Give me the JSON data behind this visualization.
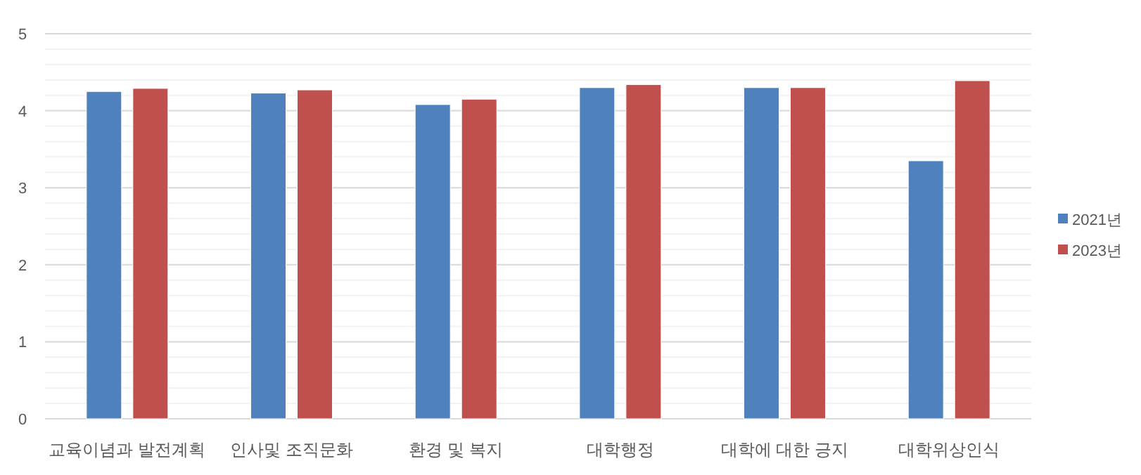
{
  "chart_data": {
    "type": "bar",
    "categories": [
      "교육이념과 발전계획",
      "인사및 조직문화",
      "환경 및 복지",
      "대학행정",
      "대학에 대한 긍지",
      "대학위상인식"
    ],
    "series": [
      {
        "name": "2021년",
        "color": "#4f81bd",
        "values": [
          4.25,
          4.23,
          4.08,
          4.3,
          4.3,
          3.35
        ]
      },
      {
        "name": "2023년",
        "color": "#c0504d",
        "values": [
          4.29,
          4.27,
          4.15,
          4.34,
          4.3,
          4.39
        ]
      }
    ],
    "ylim": [
      0,
      5
    ],
    "yticks": [
      0,
      {
        "value": 0.2,
        "label": null
      },
      {
        "value": 0.4,
        "label": null
      },
      {
        "value": 0.6,
        "label": null
      },
      {
        "value": 0.8,
        "label": null
      },
      1,
      {
        "value": 1.2,
        "label": null
      },
      {
        "value": 1.4,
        "label": null
      },
      {
        "value": 1.6,
        "label": null
      },
      {
        "value": 1.8,
        "label": null
      },
      2,
      {
        "value": 2.2,
        "label": null
      },
      {
        "value": 2.4,
        "label": null
      },
      {
        "value": 2.6,
        "label": null
      },
      {
        "value": 2.8,
        "label": null
      },
      3,
      {
        "value": 3.2,
        "label": null
      },
      {
        "value": 3.4,
        "label": null
      },
      {
        "value": 3.6,
        "label": null
      },
      {
        "value": 3.8,
        "label": null
      },
      4,
      {
        "value": 4.2,
        "label": null
      },
      {
        "value": 4.4,
        "label": null
      },
      {
        "value": 4.6,
        "label": null
      },
      {
        "value": 4.8,
        "label": null
      },
      5
    ],
    "grid": "y",
    "legend": "right"
  }
}
